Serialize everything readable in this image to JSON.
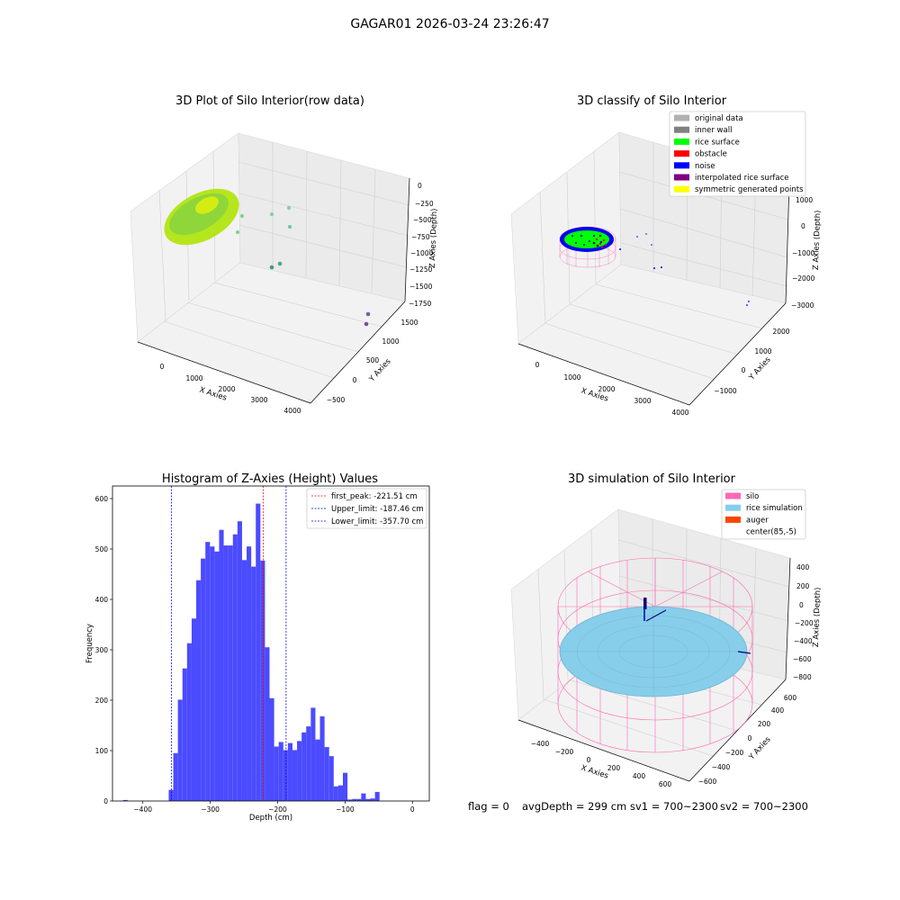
{
  "suptitle": "GAGAR01 2026-03-24 23:26:47",
  "footer": {
    "flag": "flag = 0",
    "avg": "avgDepth = 299 cm",
    "sv1": "sv1 = 700~2300",
    "sv2": "sv2 = 700~2300"
  },
  "panels": {
    "raw": {
      "title": "3D Plot of Silo Interior(row data)",
      "xlabel": "X Axies",
      "ylabel": "Y Axies",
      "zlabel": "Z Axies (Depth)",
      "xticks": [
        "0",
        "1000",
        "2000",
        "3000",
        "4000"
      ],
      "yticks": [
        "−500",
        "0",
        "500",
        "1000",
        "1500"
      ],
      "zticks": [
        "0",
        "−250",
        "−500",
        "−750",
        "−1000",
        "−1250",
        "−1500",
        "−1750"
      ]
    },
    "classify": {
      "title": "3D classify of Silo Interior",
      "xlabel": "X Axies",
      "ylabel": "Y Axies",
      "zlabel": "Z Axies (Depth)",
      "xticks": [
        "0",
        "1000",
        "2000",
        "3000",
        "4000"
      ],
      "yticks": [
        "−1000",
        "0",
        "1000",
        "2000"
      ],
      "zticks": [
        "1000",
        "0",
        "−1000",
        "−2000",
        "−3000"
      ],
      "legend": [
        {
          "label": "original data",
          "color": "#b0b0b0"
        },
        {
          "label": "inner wall",
          "color": "#808080"
        },
        {
          "label": "rice surface",
          "color": "#00ff00"
        },
        {
          "label": "obstacle",
          "color": "#ff0000"
        },
        {
          "label": "noise",
          "color": "#0000ff"
        },
        {
          "label": "interpolated rice surface",
          "color": "#800080"
        },
        {
          "label": "symmetric generated points",
          "color": "#ffff00"
        }
      ]
    },
    "simulation": {
      "title": "3D simulation of Silo Interior",
      "xlabel": "X Axies",
      "ylabel": "Y Axies",
      "zlabel": "Z Axies (Depth)",
      "xticks": [
        "−400",
        "−200",
        "0",
        "200",
        "400",
        "600"
      ],
      "yticks": [
        "−600",
        "−400",
        "−200",
        "0",
        "200",
        "400",
        "600"
      ],
      "zticks": [
        "400",
        "200",
        "0",
        "−200",
        "−400",
        "−600",
        "−800"
      ],
      "legend": [
        {
          "label": "silo",
          "color": "#ff69b4"
        },
        {
          "label": "rice simulation",
          "color": "#87ceeb"
        },
        {
          "label": "auger",
          "color": "#ff4500"
        },
        {
          "label": "center(85,-5)",
          "color": "#ffffff"
        }
      ]
    }
  },
  "chart_data": [
    {
      "type": "histogram",
      "title": "Histogram of Z-Axies (Height) Values",
      "xlabel": "Depth (cm)",
      "ylabel": "Frequency",
      "xlim": [
        -445,
        25
      ],
      "ylim": [
        0,
        625
      ],
      "xticks": [
        -400,
        -300,
        -200,
        -100,
        0
      ],
      "yticks": [
        0,
        100,
        200,
        300,
        400,
        500,
        600
      ],
      "bar_color": "#4b4bff",
      "bins": [
        {
          "x0": -429.4,
          "x1": -422.6,
          "y": 2
        },
        {
          "x0": -361.6,
          "x1": -354.8,
          "y": 22
        },
        {
          "x0": -354.8,
          "x1": -348.0,
          "y": 95
        },
        {
          "x0": -348.0,
          "x1": -341.2,
          "y": 201
        },
        {
          "x0": -341.2,
          "x1": -334.4,
          "y": 263
        },
        {
          "x0": -334.4,
          "x1": -327.6,
          "y": 313
        },
        {
          "x0": -327.6,
          "x1": -320.8,
          "y": 362
        },
        {
          "x0": -320.8,
          "x1": -314.0,
          "y": 438
        },
        {
          "x0": -314.0,
          "x1": -307.2,
          "y": 481
        },
        {
          "x0": -307.2,
          "x1": -300.4,
          "y": 514
        },
        {
          "x0": -300.4,
          "x1": -293.6,
          "y": 505
        },
        {
          "x0": -293.6,
          "x1": -286.8,
          "y": 495
        },
        {
          "x0": -286.8,
          "x1": -280.0,
          "y": 538
        },
        {
          "x0": -280.0,
          "x1": -273.2,
          "y": 507
        },
        {
          "x0": -273.2,
          "x1": -266.4,
          "y": 507
        },
        {
          "x0": -266.4,
          "x1": -259.6,
          "y": 529
        },
        {
          "x0": -259.6,
          "x1": -252.8,
          "y": 555
        },
        {
          "x0": -252.8,
          "x1": -246.0,
          "y": 478
        },
        {
          "x0": -246.0,
          "x1": -239.2,
          "y": 505
        },
        {
          "x0": -239.2,
          "x1": -232.4,
          "y": 465
        },
        {
          "x0": -232.4,
          "x1": -225.6,
          "y": 590
        },
        {
          "x0": -225.6,
          "x1": -218.8,
          "y": 477
        },
        {
          "x0": -218.8,
          "x1": -212.0,
          "y": 305
        },
        {
          "x0": -212.0,
          "x1": -205.2,
          "y": 204
        },
        {
          "x0": -205.2,
          "x1": -198.4,
          "y": 108
        },
        {
          "x0": -198.4,
          "x1": -191.6,
          "y": 117
        },
        {
          "x0": -191.6,
          "x1": -184.8,
          "y": 101
        },
        {
          "x0": -184.8,
          "x1": -178.0,
          "y": 115
        },
        {
          "x0": -178.0,
          "x1": -171.2,
          "y": 101
        },
        {
          "x0": -171.2,
          "x1": -164.4,
          "y": 119
        },
        {
          "x0": -164.4,
          "x1": -157.6,
          "y": 136
        },
        {
          "x0": -157.6,
          "x1": -150.8,
          "y": 148
        },
        {
          "x0": -150.8,
          "x1": -144.0,
          "y": 185
        },
        {
          "x0": -144.0,
          "x1": -137.2,
          "y": 122
        },
        {
          "x0": -137.2,
          "x1": -130.4,
          "y": 168
        },
        {
          "x0": -130.4,
          "x1": -123.6,
          "y": 107
        },
        {
          "x0": -123.6,
          "x1": -116.8,
          "y": 89
        },
        {
          "x0": -116.8,
          "x1": -110.0,
          "y": 29
        },
        {
          "x0": -110.0,
          "x1": -103.2,
          "y": 31
        },
        {
          "x0": -103.2,
          "x1": -96.4,
          "y": 56
        },
        {
          "x0": -96.4,
          "x1": -89.6,
          "y": 3
        },
        {
          "x0": -89.6,
          "x1": -82.8,
          "y": 4
        },
        {
          "x0": -82.8,
          "x1": -76.0,
          "y": 4
        },
        {
          "x0": -76.0,
          "x1": -69.2,
          "y": 15
        },
        {
          "x0": -69.2,
          "x1": -62.4,
          "y": 4
        },
        {
          "x0": -62.4,
          "x1": -55.6,
          "y": 5
        },
        {
          "x0": -55.6,
          "x1": -48.8,
          "y": 18
        }
      ],
      "vlines": [
        {
          "x": -221.51,
          "color": "#ff0000",
          "label": "first_peak: -221.51 cm"
        },
        {
          "x": -187.46,
          "color": "#0000ff",
          "label": "Upper_limit: -187.46 cm"
        },
        {
          "x": -357.7,
          "color": "#0000ff",
          "label": "Lower_limit: -357.70 cm"
        }
      ],
      "legend_position": "top-right"
    }
  ]
}
